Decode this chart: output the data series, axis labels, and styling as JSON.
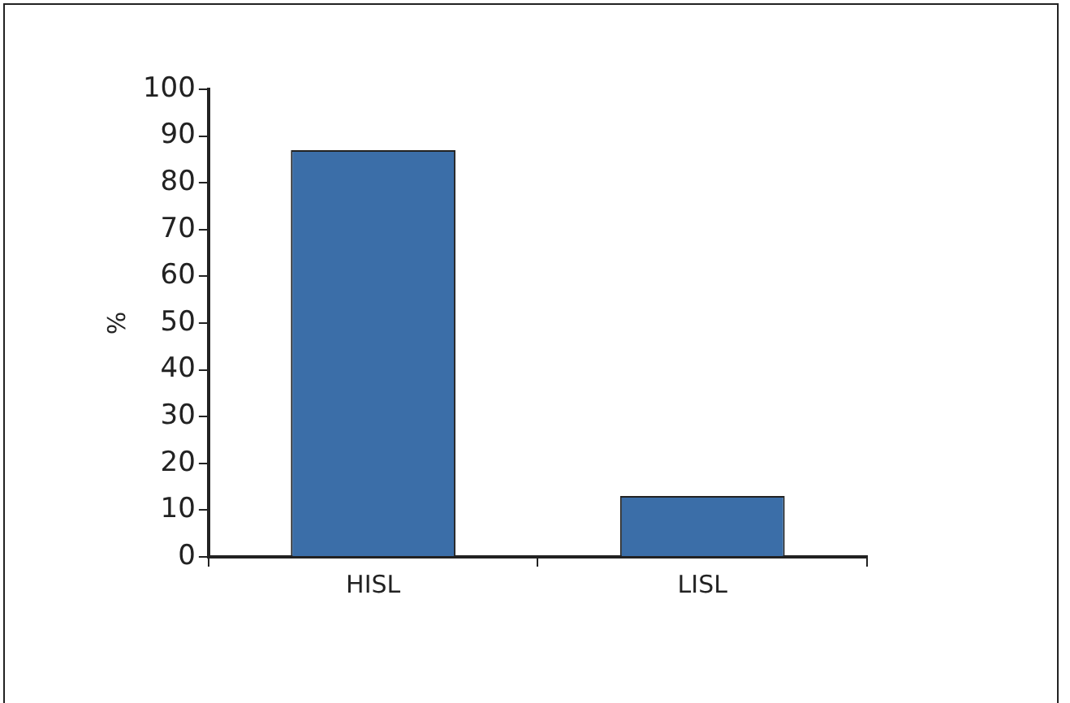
{
  "chart_data": {
    "type": "bar",
    "ylabel": "%",
    "categories": [
      "HISL",
      "LISL"
    ],
    "values": [
      87,
      13
    ],
    "color": "#3b6ea8",
    "ylim": [
      0,
      100
    ],
    "yticks": [
      0,
      10,
      20,
      30,
      40,
      50,
      60,
      70,
      80,
      90,
      100
    ],
    "grid": false
  }
}
